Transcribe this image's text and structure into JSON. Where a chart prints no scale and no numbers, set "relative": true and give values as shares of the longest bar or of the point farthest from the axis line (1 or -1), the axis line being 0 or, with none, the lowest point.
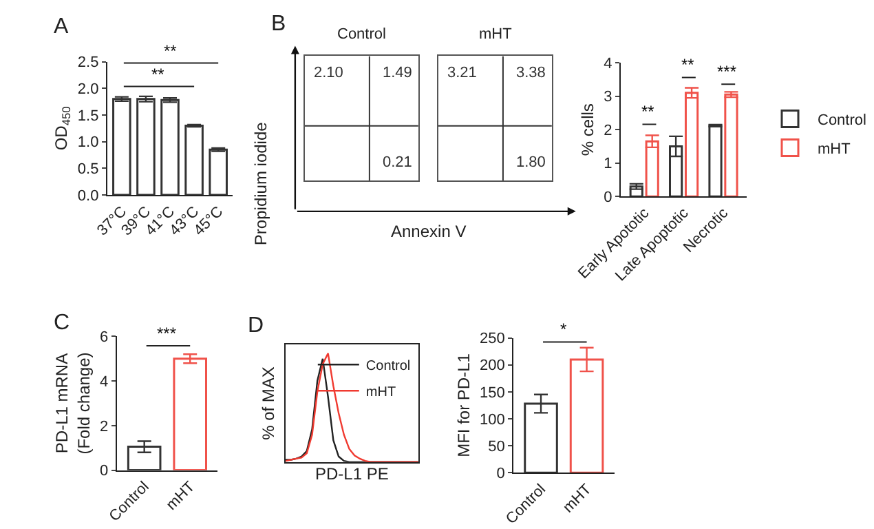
{
  "chart_data": [
    {
      "type": "bar",
      "title": "A",
      "ylabel": "OD$_{450}$",
      "categories": [
        "37°C",
        "39°C",
        "41°C",
        "43°C",
        "45°C"
      ],
      "values": [
        1.8,
        1.8,
        1.78,
        1.3,
        0.85
      ],
      "errors": [
        0.04,
        0.05,
        0.04,
        0.02,
        0.03
      ],
      "color": "#333333",
      "ylim": [
        0,
        2.5
      ],
      "yticks": [
        {
          "value": 0,
          "label": "0.0"
        },
        0.5,
        {
          "value": 1,
          "label": "1.0"
        },
        1.5,
        {
          "value": 2,
          "label": "2.0"
        },
        2.5
      ],
      "annotations": [
        "**",
        "**"
      ]
    },
    {
      "type": "other",
      "title": "B",
      "subtitle": "Control",
      "xlabel": "Annexin V",
      "ylabel": "Propidium iodide",
      "annotations": [
        "2.10",
        "1.49",
        "0.21"
      ]
    },
    {
      "type": "other",
      "subtitle": "mHT",
      "annotations": [
        "3.21",
        "3.38",
        "1.80"
      ]
    },
    {
      "type": "bar",
      "ylabel": "% cells",
      "categories": [
        "Early Apototic",
        "Late Apoptotic",
        "Necrotic"
      ],
      "series": [
        {
          "name": "Control",
          "color": "#333333",
          "values": [
            0.3,
            1.5,
            2.12
          ],
          "errors": [
            0.08,
            0.3,
            0.03
          ]
        },
        {
          "name": "mHT",
          "color": "#f0524a",
          "values": [
            1.65,
            3.1,
            3.05
          ],
          "errors": [
            0.18,
            0.15,
            0.08
          ]
        }
      ],
      "ylim": [
        0,
        4
      ],
      "yticks": [
        0,
        1,
        2,
        3,
        4
      ],
      "legend": "right",
      "annotations": [
        "**",
        "**",
        "***"
      ]
    },
    {
      "type": "bar",
      "title": "C",
      "ylabel": "PD-L1 mRNA\n(Fold change)",
      "categories": [
        "Control",
        "mHT"
      ],
      "values": [
        1.05,
        5.0
      ],
      "errors": [
        0.25,
        0.2
      ],
      "colors": [
        "#333333",
        "#f0524a"
      ],
      "ylim": [
        0,
        6
      ],
      "yticks": [
        0,
        2,
        4,
        6
      ],
      "annotations": [
        "***"
      ]
    },
    {
      "type": "line",
      "title": "D",
      "relative": true,
      "xlabel": "PD-L1 PE",
      "ylabel": "% of MAX",
      "tick_labels": false,
      "legend": "top right",
      "categories": [
        null,
        null,
        null,
        null,
        null,
        null,
        null,
        null,
        null,
        null,
        null,
        null,
        null,
        null,
        null,
        null,
        null,
        null,
        null,
        null,
        null,
        null,
        null,
        null,
        null,
        null
      ],
      "series": [
        {
          "name": "Control",
          "color": "#222222",
          "values": [
            0.02,
            0.02,
            0.03,
            0.05,
            0.1,
            0.3,
            0.75,
            0.95,
            0.6,
            0.2,
            0.05,
            0.01,
            0,
            0,
            0,
            0,
            0,
            0,
            0,
            0,
            0,
            0,
            0,
            0,
            0,
            0
          ]
        },
        {
          "name": "mHT",
          "color": "#f03a30",
          "values": [
            0.01,
            0.02,
            0.03,
            0.04,
            0.08,
            0.25,
            0.65,
            0.9,
            1.0,
            0.7,
            0.45,
            0.25,
            0.12,
            0.06,
            0.03,
            0.01,
            0,
            0,
            0,
            0,
            0,
            0,
            0,
            0,
            0,
            0
          ]
        }
      ]
    },
    {
      "type": "bar",
      "ylabel": "MFI for PD-L1",
      "categories": [
        "Control",
        "mHT"
      ],
      "values": [
        128,
        210
      ],
      "errors": [
        17,
        22
      ],
      "colors": [
        "#333333",
        "#f0524a"
      ],
      "ylim": [
        0,
        250
      ],
      "yticks": [
        0,
        50,
        100,
        150,
        200,
        250
      ],
      "annotations": [
        "*"
      ]
    }
  ]
}
